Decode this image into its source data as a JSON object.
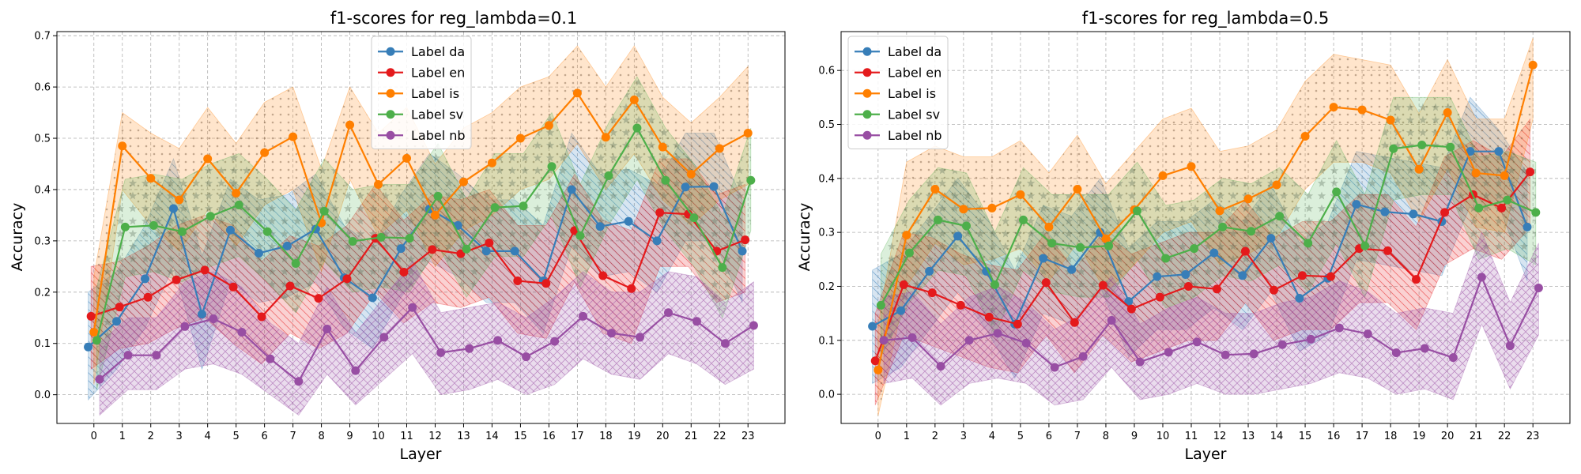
{
  "chart_data": [
    {
      "type": "line",
      "title": "f1-scores for reg_lambda=0.1",
      "xlabel": "Layer",
      "ylabel": "Accuracy",
      "x": [
        0,
        1,
        2,
        3,
        4,
        5,
        6,
        7,
        8,
        9,
        10,
        11,
        12,
        13,
        14,
        15,
        16,
        17,
        18,
        19,
        20,
        21,
        22,
        23
      ],
      "x_tick_labels": [
        "0",
        "1",
        "2",
        "3",
        "4",
        "5",
        "6",
        "7",
        "8",
        "9",
        "10",
        "11",
        "12",
        "13",
        "14",
        "15",
        "16",
        "17",
        "18",
        "19",
        "20",
        "21",
        "22",
        "23"
      ],
      "xlim": [
        -1.3,
        24.3
      ],
      "ylim": [
        -0.056,
        0.708
      ],
      "y_ticks": [
        0.0,
        0.1,
        0.2,
        0.3,
        0.4,
        0.5,
        0.6,
        0.7
      ],
      "y_tick_labels": [
        "0.0",
        "0.1",
        "0.2",
        "0.3",
        "0.4",
        "0.5",
        "0.6",
        "0.7"
      ],
      "grid": true,
      "legend_position": "upper-center",
      "bands": "shaded, hatched uncertainty band around every series",
      "series": [
        {
          "name": "Label da",
          "color": "#377eb8",
          "hatch": "\\\\",
          "x_offset": -0.2,
          "values": [
            0.093,
            0.143,
            0.226,
            0.363,
            0.157,
            0.321,
            0.276,
            0.29,
            0.323,
            0.228,
            0.189,
            0.285,
            0.362,
            0.33,
            0.28,
            0.28,
            0.222,
            0.4,
            0.328,
            0.338,
            0.3,
            0.405,
            0.406,
            0.28
          ],
          "lower": [
            -0.01,
            0.05,
            0.13,
            0.25,
            0.05,
            0.22,
            0.18,
            0.19,
            0.22,
            0.13,
            0.09,
            0.19,
            0.26,
            0.23,
            0.18,
            0.18,
            0.12,
            0.29,
            0.23,
            0.24,
            0.2,
            0.3,
            0.3,
            0.18
          ],
          "upper": [
            0.2,
            0.24,
            0.33,
            0.46,
            0.27,
            0.42,
            0.38,
            0.39,
            0.43,
            0.33,
            0.29,
            0.39,
            0.47,
            0.43,
            0.38,
            0.38,
            0.33,
            0.51,
            0.43,
            0.44,
            0.41,
            0.51,
            0.51,
            0.38
          ]
        },
        {
          "name": "Label en",
          "color": "#e41a1c",
          "hatch": "\\\\",
          "x_offset": -0.1,
          "values": [
            0.153,
            0.171,
            0.19,
            0.224,
            0.243,
            0.21,
            0.152,
            0.212,
            0.188,
            0.226,
            0.305,
            0.239,
            0.283,
            0.275,
            0.296,
            0.222,
            0.217,
            0.32,
            0.232,
            0.207,
            0.355,
            0.352,
            0.28,
            0.302
          ],
          "lower": [
            0.05,
            0.09,
            0.1,
            0.13,
            0.15,
            0.1,
            0.06,
            0.12,
            0.09,
            0.12,
            0.2,
            0.14,
            0.18,
            0.17,
            0.19,
            0.12,
            0.11,
            0.22,
            0.12,
            0.1,
            0.25,
            0.25,
            0.18,
            0.2
          ],
          "upper": [
            0.25,
            0.26,
            0.29,
            0.33,
            0.35,
            0.33,
            0.26,
            0.31,
            0.29,
            0.33,
            0.41,
            0.34,
            0.39,
            0.38,
            0.4,
            0.33,
            0.33,
            0.43,
            0.34,
            0.32,
            0.46,
            0.46,
            0.39,
            0.41
          ]
        },
        {
          "name": "Label is",
          "color": "#ff7f00",
          "hatch": ".",
          "x_offset": 0.0,
          "values": [
            0.122,
            0.485,
            0.422,
            0.38,
            0.46,
            0.393,
            0.472,
            0.503,
            0.335,
            0.526,
            0.41,
            0.461,
            0.35,
            0.415,
            0.452,
            0.5,
            0.525,
            0.588,
            0.502,
            0.575,
            0.483,
            0.43,
            0.48,
            0.51
          ],
          "lower": [
            0.02,
            0.4,
            0.33,
            0.28,
            0.36,
            0.29,
            0.37,
            0.4,
            0.24,
            0.42,
            0.31,
            0.36,
            0.25,
            0.32,
            0.35,
            0.4,
            0.42,
            0.49,
            0.4,
            0.47,
            0.38,
            0.33,
            0.38,
            0.41
          ],
          "upper": [
            0.23,
            0.55,
            0.51,
            0.48,
            0.56,
            0.49,
            0.57,
            0.6,
            0.44,
            0.6,
            0.51,
            0.56,
            0.45,
            0.52,
            0.55,
            0.6,
            0.62,
            0.68,
            0.6,
            0.68,
            0.58,
            0.53,
            0.58,
            0.64
          ]
        },
        {
          "name": "Label sv",
          "color": "#4daf4a",
          "hatch": "*",
          "x_offset": 0.1,
          "values": [
            0.106,
            0.327,
            0.33,
            0.318,
            0.348,
            0.37,
            0.318,
            0.256,
            0.358,
            0.299,
            0.307,
            0.305,
            0.387,
            0.284,
            0.365,
            0.368,
            0.445,
            0.31,
            0.427,
            0.52,
            0.418,
            0.345,
            0.248,
            0.418
          ],
          "lower": [
            0.01,
            0.23,
            0.24,
            0.22,
            0.25,
            0.27,
            0.22,
            0.16,
            0.26,
            0.2,
            0.21,
            0.2,
            0.29,
            0.19,
            0.27,
            0.27,
            0.35,
            0.21,
            0.33,
            0.42,
            0.32,
            0.25,
            0.15,
            0.32
          ],
          "upper": [
            0.21,
            0.42,
            0.43,
            0.42,
            0.45,
            0.47,
            0.42,
            0.36,
            0.46,
            0.4,
            0.41,
            0.41,
            0.49,
            0.38,
            0.47,
            0.47,
            0.55,
            0.41,
            0.53,
            0.62,
            0.52,
            0.45,
            0.35,
            0.52
          ]
        },
        {
          "name": "Label nb",
          "color": "#984ea3",
          "hatch": "x",
          "x_offset": 0.2,
          "values": [
            0.03,
            0.077,
            0.077,
            0.133,
            0.148,
            0.122,
            0.07,
            0.026,
            0.128,
            0.047,
            0.112,
            0.17,
            0.082,
            0.09,
            0.106,
            0.074,
            0.104,
            0.153,
            0.12,
            0.112,
            0.16,
            0.143,
            0.1,
            0.135
          ],
          "lower": [
            -0.04,
            0.01,
            0.01,
            0.05,
            0.06,
            0.04,
            0.0,
            -0.04,
            0.04,
            -0.02,
            0.03,
            0.08,
            0.0,
            0.01,
            0.03,
            0.0,
            0.02,
            0.07,
            0.04,
            0.03,
            0.08,
            0.06,
            0.02,
            0.05
          ],
          "upper": [
            0.1,
            0.15,
            0.15,
            0.22,
            0.24,
            0.21,
            0.14,
            0.1,
            0.21,
            0.12,
            0.19,
            0.26,
            0.16,
            0.17,
            0.18,
            0.15,
            0.19,
            0.24,
            0.2,
            0.2,
            0.24,
            0.23,
            0.18,
            0.22
          ]
        }
      ]
    },
    {
      "type": "line",
      "title": "f1-scores for reg_lambda=0.5",
      "xlabel": "Layer",
      "ylabel": "Accuracy",
      "x": [
        0,
        1,
        2,
        3,
        4,
        5,
        6,
        7,
        8,
        9,
        10,
        11,
        12,
        13,
        14,
        15,
        16,
        17,
        18,
        19,
        20,
        21,
        22,
        23
      ],
      "x_tick_labels": [
        "0",
        "1",
        "2",
        "3",
        "4",
        "5",
        "6",
        "7",
        "8",
        "9",
        "10",
        "11",
        "12",
        "13",
        "14",
        "15",
        "16",
        "17",
        "18",
        "19",
        "20",
        "21",
        "22",
        "23"
      ],
      "xlim": [
        -1.3,
        24.3
      ],
      "ylim": [
        -0.054,
        0.672
      ],
      "y_ticks": [
        0.0,
        0.1,
        0.2,
        0.3,
        0.4,
        0.5,
        0.6
      ],
      "y_tick_labels": [
        "0.0",
        "0.1",
        "0.2",
        "0.3",
        "0.4",
        "0.5",
        "0.6"
      ],
      "grid": true,
      "legend_position": "upper-left",
      "bands": "shaded, hatched uncertainty band around every series",
      "series": [
        {
          "name": "Label da",
          "color": "#377eb8",
          "hatch": "\\\\",
          "x_offset": -0.2,
          "values": [
            0.126,
            0.155,
            0.228,
            0.293,
            0.228,
            0.13,
            0.252,
            0.231,
            0.3,
            0.172,
            0.218,
            0.222,
            0.262,
            0.22,
            0.289,
            0.178,
            0.215,
            0.352,
            0.338,
            0.334,
            0.32,
            0.45,
            0.45,
            0.31
          ],
          "lower": [
            0.02,
            0.05,
            0.12,
            0.19,
            0.12,
            0.03,
            0.15,
            0.13,
            0.2,
            0.07,
            0.12,
            0.12,
            0.16,
            0.12,
            0.19,
            0.08,
            0.11,
            0.25,
            0.24,
            0.23,
            0.22,
            0.35,
            0.35,
            0.21
          ],
          "upper": [
            0.23,
            0.26,
            0.33,
            0.4,
            0.33,
            0.23,
            0.35,
            0.33,
            0.4,
            0.27,
            0.32,
            0.32,
            0.36,
            0.32,
            0.39,
            0.28,
            0.32,
            0.45,
            0.44,
            0.43,
            0.42,
            0.55,
            0.49,
            0.41
          ]
        },
        {
          "name": "Label en",
          "color": "#e41a1c",
          "hatch": "\\\\",
          "x_offset": -0.1,
          "values": [
            0.062,
            0.203,
            0.188,
            0.165,
            0.143,
            0.13,
            0.207,
            0.133,
            0.202,
            0.158,
            0.18,
            0.2,
            0.195,
            0.265,
            0.193,
            0.22,
            0.218,
            0.27,
            0.266,
            0.213,
            0.337,
            0.37,
            0.345,
            0.412
          ],
          "lower": [
            -0.02,
            0.11,
            0.09,
            0.07,
            0.05,
            0.04,
            0.11,
            0.04,
            0.11,
            0.06,
            0.08,
            0.1,
            0.1,
            0.17,
            0.1,
            0.12,
            0.12,
            0.17,
            0.17,
            0.12,
            0.24,
            0.27,
            0.25,
            0.31
          ],
          "upper": [
            0.15,
            0.3,
            0.29,
            0.26,
            0.24,
            0.23,
            0.3,
            0.23,
            0.3,
            0.26,
            0.28,
            0.3,
            0.3,
            0.36,
            0.29,
            0.32,
            0.32,
            0.37,
            0.37,
            0.31,
            0.44,
            0.47,
            0.44,
            0.51
          ]
        },
        {
          "name": "Label is",
          "color": "#ff7f00",
          "hatch": ".",
          "x_offset": 0.0,
          "values": [
            0.045,
            0.295,
            0.38,
            0.343,
            0.345,
            0.37,
            0.31,
            0.38,
            0.288,
            0.342,
            0.405,
            0.422,
            0.34,
            0.362,
            0.388,
            0.478,
            0.532,
            0.527,
            0.508,
            0.417,
            0.522,
            0.41,
            0.405,
            0.61
          ],
          "lower": [
            -0.04,
            0.2,
            0.28,
            0.24,
            0.25,
            0.27,
            0.21,
            0.28,
            0.19,
            0.24,
            0.3,
            0.32,
            0.24,
            0.26,
            0.29,
            0.38,
            0.43,
            0.43,
            0.41,
            0.32,
            0.42,
            0.31,
            0.3,
            0.51
          ],
          "upper": [
            0.13,
            0.43,
            0.46,
            0.44,
            0.44,
            0.47,
            0.41,
            0.48,
            0.39,
            0.45,
            0.51,
            0.53,
            0.45,
            0.46,
            0.49,
            0.58,
            0.63,
            0.62,
            0.61,
            0.52,
            0.62,
            0.51,
            0.51,
            0.66
          ]
        },
        {
          "name": "Label sv",
          "color": "#4daf4a",
          "hatch": "*",
          "x_offset": 0.1,
          "values": [
            0.165,
            0.262,
            0.323,
            0.312,
            0.203,
            0.323,
            0.28,
            0.272,
            0.275,
            0.34,
            0.252,
            0.27,
            0.31,
            0.302,
            0.33,
            0.28,
            0.375,
            0.275,
            0.455,
            0.462,
            0.458,
            0.345,
            0.36,
            0.337
          ],
          "lower": [
            0.07,
            0.17,
            0.23,
            0.22,
            0.11,
            0.23,
            0.19,
            0.18,
            0.18,
            0.25,
            0.16,
            0.18,
            0.22,
            0.21,
            0.24,
            0.19,
            0.28,
            0.18,
            0.36,
            0.37,
            0.37,
            0.25,
            0.27,
            0.24
          ],
          "upper": [
            0.26,
            0.36,
            0.42,
            0.41,
            0.3,
            0.42,
            0.37,
            0.37,
            0.37,
            0.43,
            0.35,
            0.36,
            0.4,
            0.39,
            0.42,
            0.37,
            0.47,
            0.37,
            0.55,
            0.55,
            0.55,
            0.44,
            0.45,
            0.43
          ]
        },
        {
          "name": "Label nb",
          "color": "#984ea3",
          "hatch": "x",
          "x_offset": 0.2,
          "values": [
            0.1,
            0.105,
            0.052,
            0.1,
            0.113,
            0.095,
            0.05,
            0.07,
            0.137,
            0.06,
            0.078,
            0.097,
            0.073,
            0.075,
            0.092,
            0.102,
            0.123,
            0.112,
            0.077,
            0.085,
            0.068,
            0.217,
            0.09,
            0.197
          ],
          "lower": [
            0.02,
            0.03,
            -0.02,
            0.02,
            0.03,
            0.02,
            -0.02,
            -0.01,
            0.05,
            -0.01,
            0.0,
            0.02,
            0.0,
            0.0,
            0.01,
            0.02,
            0.04,
            0.03,
            0.0,
            0.01,
            -0.01,
            0.13,
            0.01,
            0.11
          ],
          "upper": [
            0.18,
            0.19,
            0.13,
            0.18,
            0.2,
            0.17,
            0.12,
            0.15,
            0.22,
            0.13,
            0.16,
            0.18,
            0.15,
            0.15,
            0.17,
            0.18,
            0.21,
            0.19,
            0.15,
            0.16,
            0.15,
            0.3,
            0.17,
            0.28
          ]
        }
      ]
    }
  ]
}
